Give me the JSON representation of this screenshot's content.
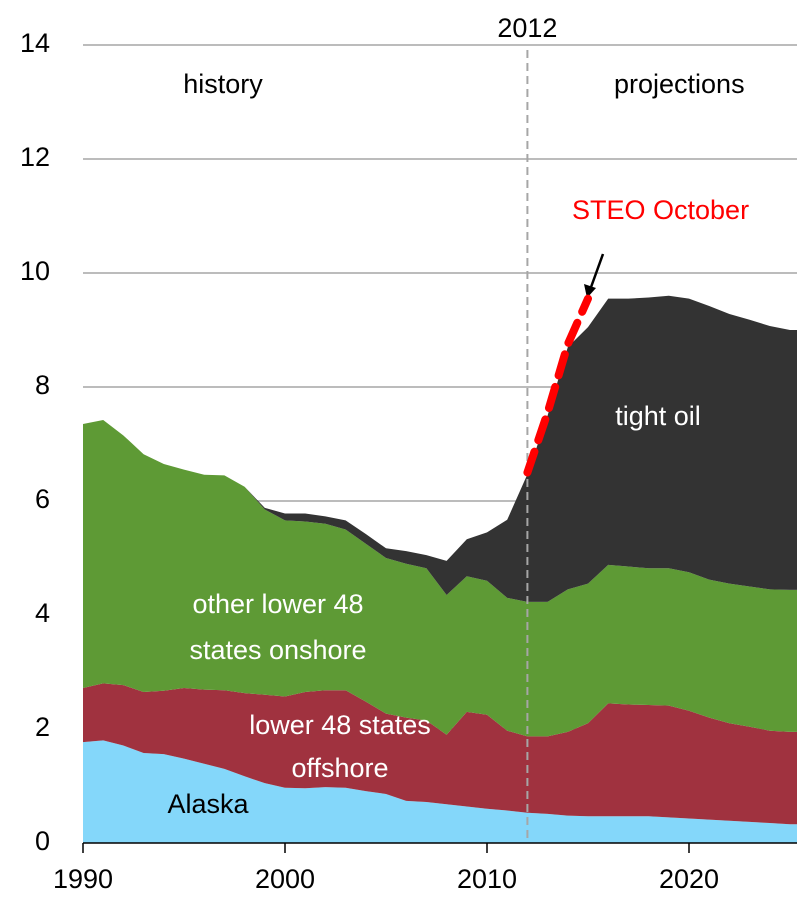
{
  "chart_data": {
    "type": "stacked_area",
    "x": [
      1990,
      1991,
      1992,
      1993,
      1994,
      1995,
      1996,
      1997,
      1998,
      1999,
      2000,
      2001,
      2002,
      2003,
      2004,
      2005,
      2006,
      2007,
      2008,
      2009,
      2010,
      2011,
      2012,
      2013,
      2014,
      2015,
      2016,
      2017,
      2018,
      2019,
      2020,
      2021,
      2022,
      2023,
      2024,
      2025
    ],
    "series": [
      {
        "name": "Alaska",
        "color": "#84d7fa",
        "values": [
          1.77,
          1.8,
          1.71,
          1.58,
          1.56,
          1.48,
          1.39,
          1.3,
          1.17,
          1.05,
          0.97,
          0.96,
          0.98,
          0.97,
          0.91,
          0.86,
          0.74,
          0.72,
          0.68,
          0.64,
          0.6,
          0.57,
          0.53,
          0.51,
          0.48,
          0.47,
          0.47,
          0.47,
          0.47,
          0.45,
          0.43,
          0.41,
          0.39,
          0.37,
          0.35,
          0.33
        ]
      },
      {
        "name": "lower 48 states offshore",
        "color": "#a0323f",
        "values": [
          0.95,
          1.0,
          1.06,
          1.07,
          1.11,
          1.24,
          1.3,
          1.38,
          1.46,
          1.55,
          1.6,
          1.69,
          1.7,
          1.71,
          1.57,
          1.41,
          1.46,
          1.43,
          1.22,
          1.66,
          1.65,
          1.4,
          1.34,
          1.36,
          1.47,
          1.63,
          1.98,
          1.96,
          1.95,
          1.96,
          1.89,
          1.79,
          1.71,
          1.67,
          1.62,
          1.62
        ]
      },
      {
        "name": "other lower 48 states onshore",
        "color": "#5e9a35",
        "values": [
          4.63,
          4.62,
          4.38,
          4.17,
          3.98,
          3.83,
          3.77,
          3.77,
          3.62,
          3.25,
          3.09,
          2.99,
          2.92,
          2.82,
          2.77,
          2.73,
          2.7,
          2.67,
          2.45,
          2.38,
          2.35,
          2.33,
          2.36,
          2.36,
          2.5,
          2.45,
          2.43,
          2.42,
          2.4,
          2.41,
          2.43,
          2.42,
          2.45,
          2.46,
          2.48,
          2.49
        ]
      },
      {
        "name": "tight oil",
        "color": "#333333",
        "values": [
          0,
          0,
          0,
          0,
          0,
          0,
          0,
          0,
          0,
          0.03,
          0.12,
          0.14,
          0.13,
          0.16,
          0.17,
          0.17,
          0.22,
          0.23,
          0.6,
          0.65,
          0.85,
          1.37,
          2.24,
          3.27,
          4.25,
          4.5,
          4.67,
          4.7,
          4.75,
          4.78,
          4.8,
          4.8,
          4.73,
          4.68,
          4.62,
          4.56
        ]
      }
    ],
    "area_labels": [
      [
        "tight oil"
      ],
      [
        "other lower 48",
        "states onshore"
      ],
      [
        "lower 48 states",
        "offshore"
      ],
      [
        "Alaska"
      ]
    ],
    "steo": {
      "name": "STEO October",
      "color": "#ff0000",
      "x": [
        2012,
        2013,
        2014,
        2015
      ],
      "values": [
        6.5,
        7.55,
        8.75,
        9.55
      ]
    },
    "divider": {
      "x": 2012,
      "label": "2012"
    },
    "annotations": [
      "history",
      "projections"
    ],
    "xlim": [
      1990,
      2025
    ],
    "ylim": [
      0,
      14
    ],
    "xticks": [
      1990,
      2000,
      2010,
      2020
    ],
    "yticks": [
      0,
      2,
      4,
      6,
      8,
      10,
      12,
      14
    ],
    "grid": true
  }
}
